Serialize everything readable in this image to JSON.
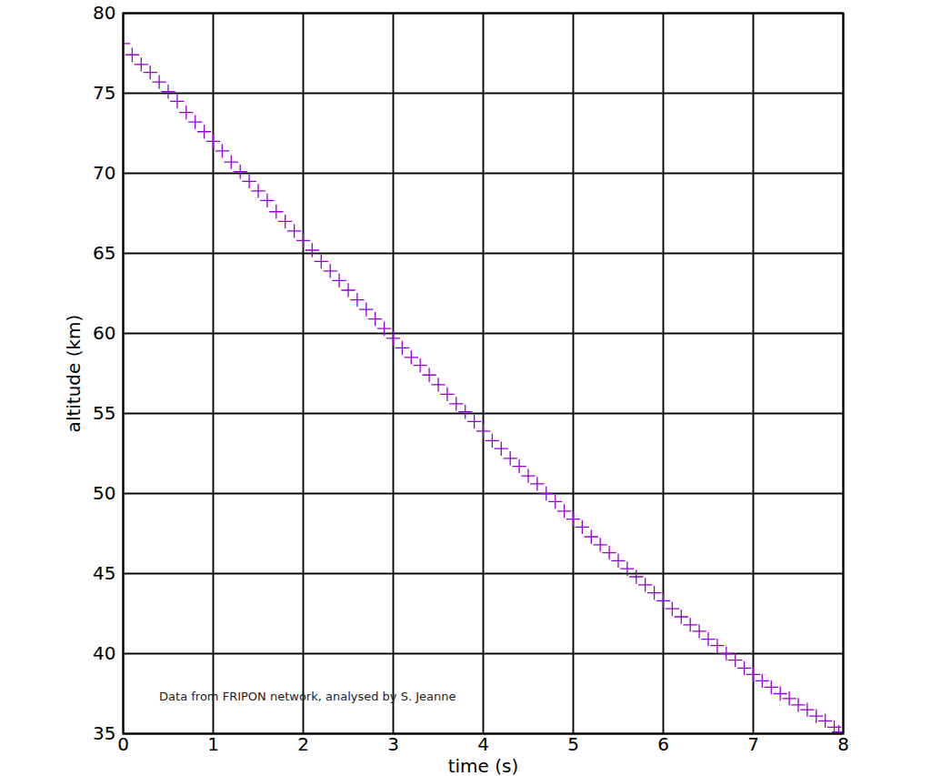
{
  "chart_data": {
    "type": "scatter",
    "x_label": "time (s)",
    "y_label": "altitude (km)",
    "xlim": [
      0,
      8
    ],
    "ylim": [
      35,
      80
    ],
    "xticks": [
      0,
      1,
      2,
      3,
      4,
      5,
      6,
      7,
      8
    ],
    "yticks": [
      35,
      40,
      45,
      50,
      55,
      60,
      65,
      70,
      75,
      80
    ],
    "grid": true,
    "marker": "plus",
    "color": "#9400d3",
    "annotations": [
      {
        "text": "Data from FRIPON network, analysed by S. Jeanne",
        "x": 0.4,
        "y": 37.3
      }
    ],
    "x": [
      0.0,
      0.1,
      0.2,
      0.3,
      0.4,
      0.5,
      0.6,
      0.7,
      0.8,
      0.9,
      1.0,
      1.1,
      1.2,
      1.3,
      1.4,
      1.5,
      1.6,
      1.7,
      1.8,
      1.9,
      2.0,
      2.1,
      2.2,
      2.3,
      2.4,
      2.5,
      2.6,
      2.7,
      2.8,
      2.9,
      3.0,
      3.1,
      3.2,
      3.3,
      3.4,
      3.5,
      3.6,
      3.7,
      3.8,
      3.9,
      4.0,
      4.1,
      4.2,
      4.3,
      4.4,
      4.5,
      4.6,
      4.7,
      4.8,
      4.9,
      5.0,
      5.1,
      5.2,
      5.3,
      5.4,
      5.5,
      5.6,
      5.7,
      5.8,
      5.9,
      6.0,
      6.1,
      6.2,
      6.3,
      6.4,
      6.5,
      6.6,
      6.7,
      6.8,
      6.9,
      7.0,
      7.1,
      7.2,
      7.3,
      7.4,
      7.5,
      7.6,
      7.7,
      7.8,
      7.9,
      7.95
    ],
    "values": [
      78.1,
      77.4,
      76.8,
      76.3,
      75.7,
      75.1,
      74.5,
      73.8,
      73.2,
      72.6,
      72.0,
      71.4,
      70.7,
      70.1,
      69.5,
      68.9,
      68.3,
      67.6,
      67.0,
      66.4,
      65.8,
      65.2,
      64.5,
      63.9,
      63.3,
      62.7,
      62.1,
      61.5,
      60.9,
      60.3,
      59.7,
      59.1,
      58.5,
      58.0,
      57.4,
      56.8,
      56.2,
      55.6,
      55.1,
      54.5,
      53.9,
      53.3,
      52.8,
      52.2,
      51.7,
      51.1,
      50.6,
      50.0,
      49.5,
      48.9,
      48.4,
      47.9,
      47.3,
      46.8,
      46.3,
      45.8,
      45.3,
      44.8,
      44.3,
      43.8,
      43.3,
      42.8,
      42.3,
      41.8,
      41.4,
      40.9,
      40.5,
      40.0,
      39.6,
      39.1,
      38.7,
      38.3,
      37.9,
      37.5,
      37.2,
      36.8,
      36.5,
      36.1,
      35.8,
      35.4,
      35.1
    ]
  }
}
